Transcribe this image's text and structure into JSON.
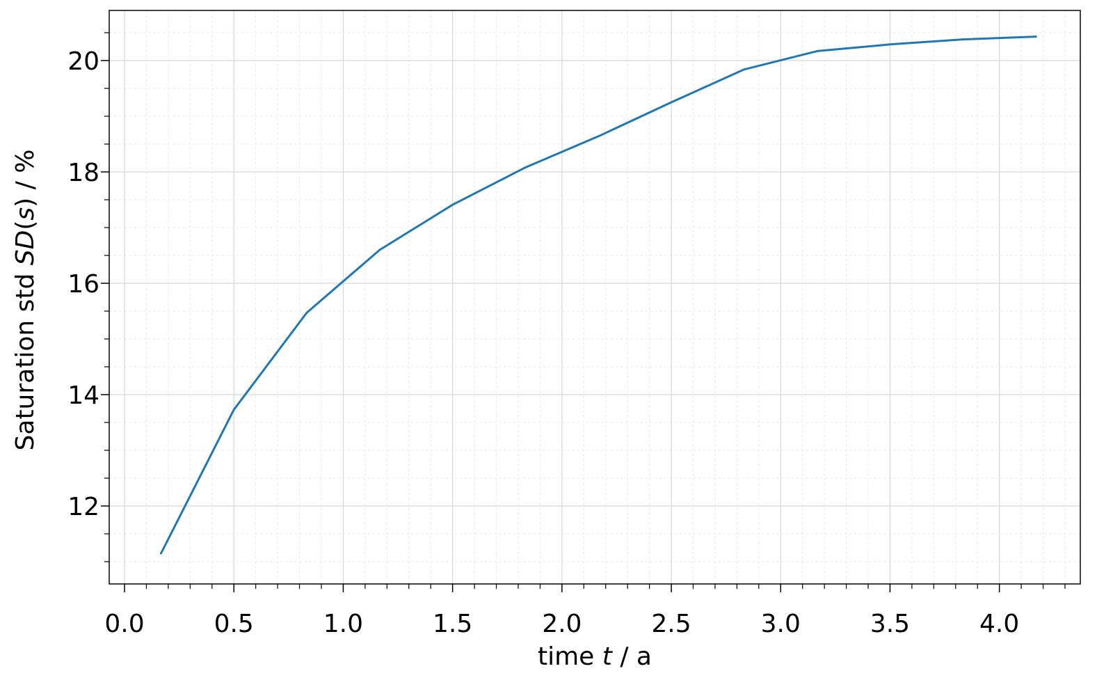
{
  "chart_data": {
    "type": "line",
    "xlabel": {
      "prefix": "time ",
      "var": "t",
      "suffix": " / a"
    },
    "ylabel": {
      "prefix": "Saturation std ",
      "var": "SD",
      "mid": "(",
      "var2": "s",
      "suffix": ") / %"
    },
    "xlim": [
      -0.07,
      4.37
    ],
    "ylim": [
      10.6,
      20.9
    ],
    "x_ticks": [
      "0.0",
      "0.5",
      "1.0",
      "1.5",
      "2.0",
      "2.5",
      "3.0",
      "3.5",
      "4.0"
    ],
    "x_tick_values": [
      0.0,
      0.5,
      1.0,
      1.5,
      2.0,
      2.5,
      3.0,
      3.5,
      4.0
    ],
    "y_ticks": [
      "12",
      "14",
      "16",
      "18",
      "20"
    ],
    "y_tick_values": [
      12,
      14,
      16,
      18,
      20
    ],
    "x_minor_step": 0.1,
    "y_minor_step": 0.5,
    "grid": true,
    "series": [
      {
        "color": "#1f77b4",
        "x": [
          0.167,
          0.5,
          0.833,
          1.167,
          1.5,
          1.833,
          2.167,
          2.5,
          2.833,
          3.167,
          3.5,
          3.833,
          4.167
        ],
        "y": [
          11.15,
          13.73,
          15.47,
          16.6,
          17.41,
          18.08,
          18.64,
          19.25,
          19.84,
          20.17,
          20.29,
          20.38,
          20.43
        ]
      }
    ]
  }
}
